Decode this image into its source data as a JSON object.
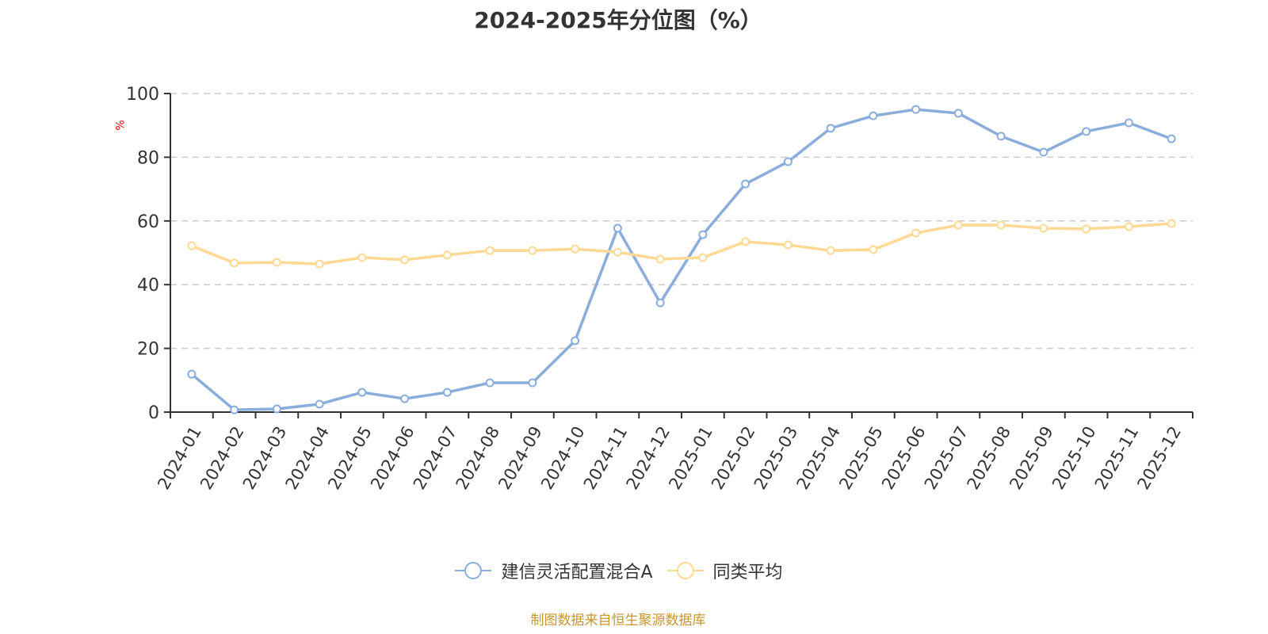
{
  "header": {
    "title": "2024-2025年分位图（%）"
  },
  "footer": {
    "source": "制图数据来自恒生聚源数据库"
  },
  "colors": {
    "series_a": "#8aaddc",
    "series_b": "#ffd993",
    "grid": "#cccccc",
    "axis": "#333333",
    "source": "#c8962e",
    "ylabel": "#ff0000"
  },
  "chart_data": {
    "type": "line",
    "title": "2024-2025年分位图（%）",
    "xlabel": "",
    "ylabel": "%",
    "ylim": [
      0,
      100
    ],
    "yticks": [
      0,
      20,
      40,
      60,
      80,
      100
    ],
    "grid": true,
    "legend_position": "bottom",
    "categories": [
      "2024-01",
      "2024-02",
      "2024-03",
      "2024-04",
      "2024-05",
      "2024-06",
      "2024-07",
      "2024-08",
      "2024-09",
      "2024-10",
      "2024-11",
      "2024-12",
      "2025-01",
      "2025-02",
      "2025-03",
      "2025-04",
      "2025-05",
      "2025-06",
      "2025-07",
      "2025-08",
      "2025-09",
      "2025-10",
      "2025-11",
      "2025-12"
    ],
    "series": [
      {
        "name": "建信灵活配置混合A",
        "color": "#8aaddc",
        "values": [
          11.9,
          0.7,
          1.0,
          2.5,
          6.2,
          4.2,
          6.2,
          9.2,
          9.2,
          22.4,
          57.7,
          34.3,
          55.7,
          71.6,
          78.6,
          89.1,
          93.0,
          95.0,
          93.8,
          86.6,
          81.6,
          88.1,
          90.8,
          85.8
        ]
      },
      {
        "name": "同类平均",
        "color": "#ffd993",
        "values": [
          52.2,
          46.8,
          47.0,
          46.5,
          48.5,
          47.8,
          49.3,
          50.7,
          50.7,
          51.2,
          50.2,
          48.0,
          48.5,
          53.5,
          52.5,
          50.7,
          51.0,
          56.2,
          58.7,
          58.7,
          57.7,
          57.5,
          58.2,
          59.2
        ]
      }
    ]
  }
}
